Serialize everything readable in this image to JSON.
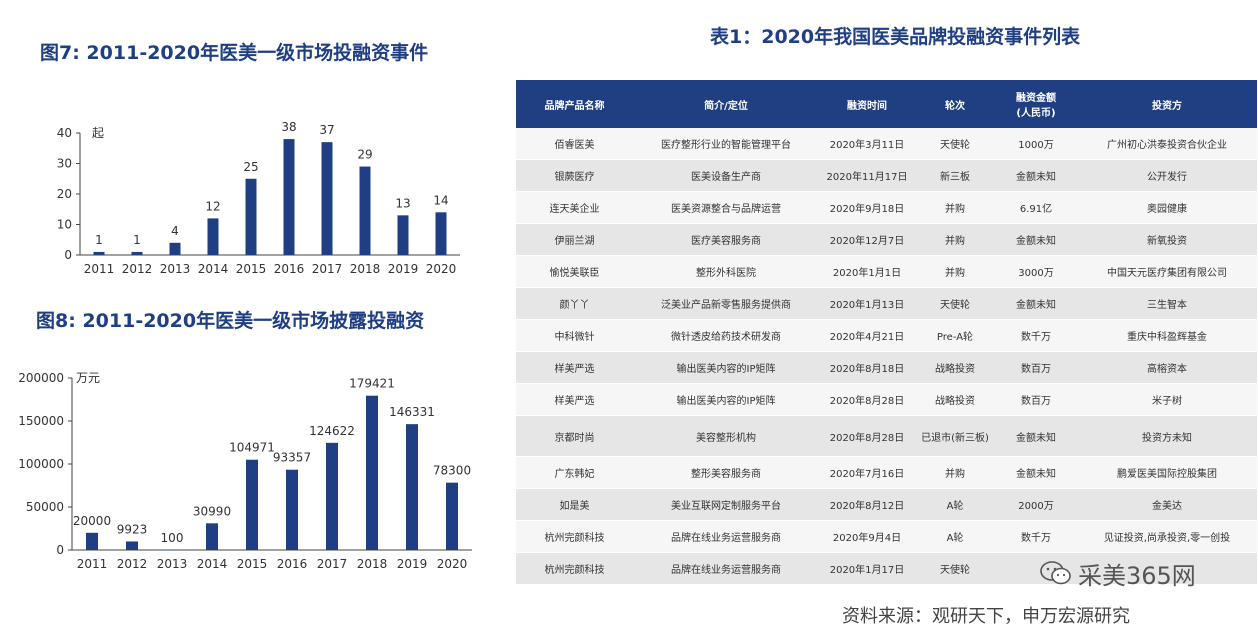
{
  "chart_data": [
    {
      "type": "bar",
      "title": "图7: 2011-2020年医美一级市场投融资事件",
      "ylabel": "起",
      "categories": [
        "2011",
        "2012",
        "2013",
        "2014",
        "2015",
        "2016",
        "2017",
        "2018",
        "2019",
        "2020"
      ],
      "values": [
        1,
        1,
        4,
        12,
        25,
        38,
        37,
        29,
        13,
        14
      ],
      "ylim": [
        0,
        40
      ],
      "yticks": [
        0,
        10,
        20,
        30,
        40
      ],
      "grid": false,
      "color": "#1f3f82"
    },
    {
      "type": "bar",
      "title": "图8: 2011-2020年医美一级市场披露投融资",
      "ylabel": "万元",
      "categories": [
        "2011",
        "2012",
        "2013",
        "2014",
        "2015",
        "2016",
        "2017",
        "2018",
        "2019",
        "2020"
      ],
      "values": [
        20000,
        9923,
        100,
        30990,
        104971,
        93357,
        124622,
        179421,
        146331,
        78300
      ],
      "ylim": [
        0,
        200000
      ],
      "yticks": [
        0,
        50000,
        100000,
        150000,
        200000
      ],
      "grid": false,
      "color": "#1f3f82"
    }
  ],
  "table": {
    "title": "表1：2020年我国医美品牌投融资事件列表",
    "headers": [
      "品牌产品名称",
      "简介/定位",
      "融资时间",
      "轮次",
      "融资金额\n(人民币)",
      "投资方"
    ],
    "rows": [
      [
        "佰睿医美",
        "医疗整形行业的智能管理平台",
        "2020年3月11日",
        "天使轮",
        "1000万",
        "广州初心洪泰投资合伙企业"
      ],
      [
        "银蕨医疗",
        "医美设备生产商",
        "2020年11月17日",
        "新三板",
        "金额未知",
        "公开发行"
      ],
      [
        "连天美企业",
        "医美资源整合与品牌运营",
        "2020年9月18日",
        "并购",
        "6.91亿",
        "奥园健康"
      ],
      [
        "伊丽兰湖",
        "医疗美容服务商",
        "2020年12月7日",
        "并购",
        "金额未知",
        "新氧投资"
      ],
      [
        "愉悦美联臣",
        "整形外科医院",
        "2020年1月1日",
        "并购",
        "3000万",
        "中国天元医疗集团有限公司"
      ],
      [
        "颜丫丫",
        "泛美业产品新零售服务提供商",
        "2020年1月13日",
        "天使轮",
        "金额未知",
        "三生智本"
      ],
      [
        "中科微针",
        "微针透皮给药技术研发商",
        "2020年4月21日",
        "Pre-A轮",
        "数千万",
        "重庆中科盈辉基金"
      ],
      [
        "样美严选",
        "输出医美内容的IP矩阵",
        "2020年8月18日",
        "战略投资",
        "数百万",
        "高榕资本"
      ],
      [
        "样美严选",
        "输出医美内容的IP矩阵",
        "2020年8月28日",
        "战略投资",
        "数百万",
        "米子树"
      ],
      [
        "京都时尚",
        "美容整形机构",
        "2020年8月28日",
        "已退市(新三板)",
        "金额未知",
        "投资方未知"
      ],
      [
        "广东韩妃",
        "整形美容服务商",
        "2020年7月16日",
        "并购",
        "金额未知",
        "鹏爱医美国际控股集团"
      ],
      [
        "如是美",
        "美业互联网定制服务平台",
        "2020年8月12日",
        "A轮",
        "2000万",
        "金美达"
      ],
      [
        "杭州完颜科技",
        "品牌在线业务运营服务商",
        "2020年9月4日",
        "A轮",
        "数千万",
        "见证投资,尚承投资,零一创投"
      ],
      [
        "杭州完颜科技",
        "品牌在线业务运营服务商",
        "2020年1月17日",
        "天使轮",
        "",
        ""
      ]
    ]
  },
  "watermark": "采美365网",
  "source": "资料来源：观研天下，申万宏源研究",
  "colors": {
    "bar": "#1f3f82",
    "header": "#1f3f82"
  }
}
